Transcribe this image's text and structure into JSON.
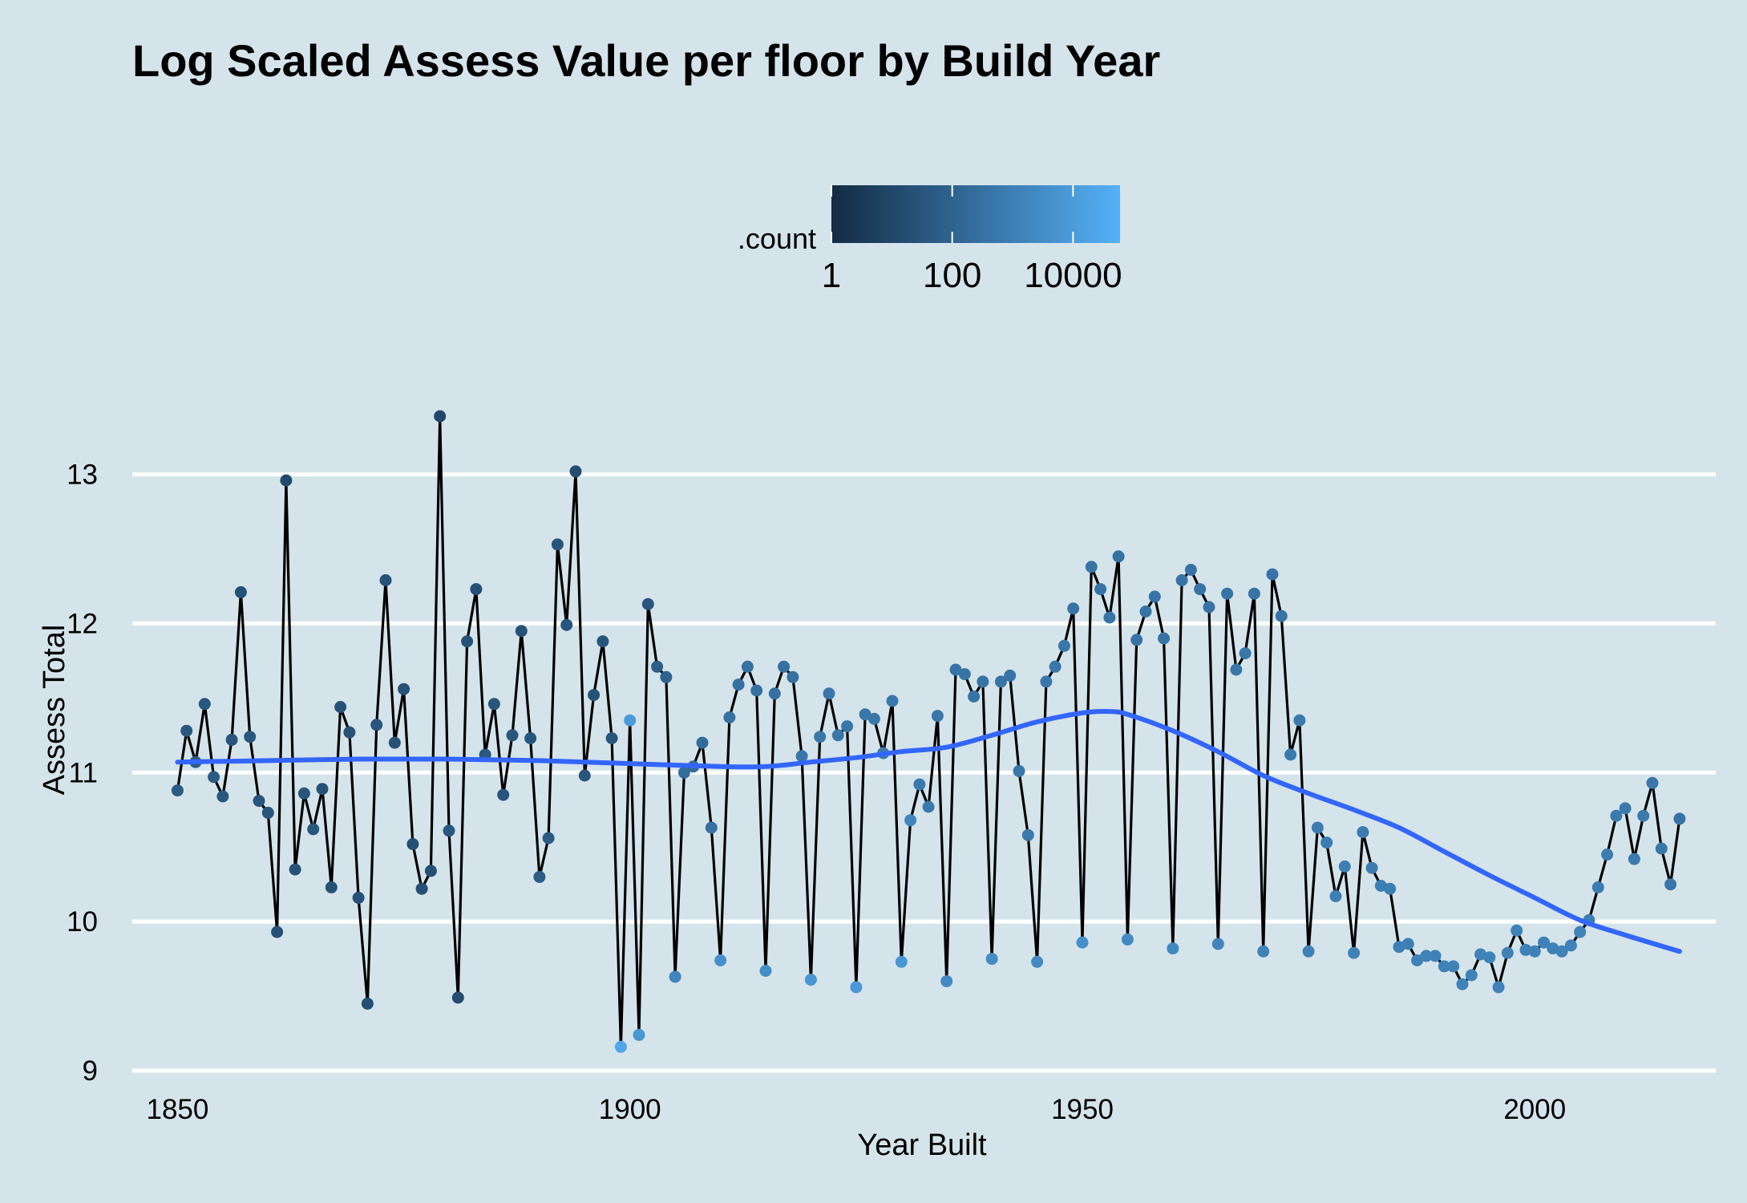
{
  "chart_data": {
    "type": "line",
    "title": "Log Scaled Assess Value per floor by Build Year",
    "xlabel": "Year Built",
    "ylabel": "Assess Total",
    "xlim": [
      1845,
      2020
    ],
    "ylim": [
      9,
      13.6
    ],
    "x_ticks": [
      "1850",
      "1900",
      "1950",
      "2000"
    ],
    "y_ticks": [
      "9",
      "10",
      "11",
      "12",
      "13"
    ],
    "grid": "horizontal major",
    "legend": {
      "title": ".count",
      "position": "top",
      "scale": "log10",
      "range": [
        1,
        60000
      ],
      "tick_labels": [
        "1",
        "100",
        "10000"
      ],
      "color_low": "#132b43",
      "color_high": "#56b1f7"
    },
    "line_color": "#000000",
    "smooth_color": "#3366ff",
    "points": [
      [
        1850,
        10.88,
        1.7
      ],
      [
        1851,
        11.28,
        1.6
      ],
      [
        1852,
        11.07,
        1.7
      ],
      [
        1853,
        11.46,
        1.6
      ],
      [
        1854,
        10.97,
        1.7
      ],
      [
        1855,
        10.84,
        1.6
      ],
      [
        1856,
        11.22,
        1.5
      ],
      [
        1857,
        12.21,
        1.4
      ],
      [
        1858,
        11.24,
        1.6
      ],
      [
        1859,
        10.81,
        1.5
      ],
      [
        1860,
        10.73,
        1.5
      ],
      [
        1861,
        9.93,
        1.3
      ],
      [
        1862,
        12.96,
        1.1
      ],
      [
        1863,
        10.35,
        1.4
      ],
      [
        1864,
        10.86,
        1.5
      ],
      [
        1865,
        10.62,
        1.6
      ],
      [
        1866,
        10.89,
        1.4
      ],
      [
        1867,
        10.23,
        1.4
      ],
      [
        1868,
        11.44,
        1.4
      ],
      [
        1869,
        11.27,
        1.4
      ],
      [
        1870,
        10.16,
        1.4
      ],
      [
        1871,
        9.45,
        1.3
      ],
      [
        1872,
        11.32,
        1.5
      ],
      [
        1873,
        12.29,
        1.4
      ],
      [
        1874,
        11.2,
        1.4
      ],
      [
        1875,
        11.56,
        1.4
      ],
      [
        1876,
        10.52,
        1.3
      ],
      [
        1877,
        10.22,
        1.3
      ],
      [
        1878,
        10.34,
        1.3
      ],
      [
        1879,
        13.39,
        1.0
      ],
      [
        1880,
        10.61,
        1.6
      ],
      [
        1881,
        9.49,
        1.2
      ],
      [
        1882,
        11.88,
        1.4
      ],
      [
        1883,
        12.23,
        1.3
      ],
      [
        1884,
        11.12,
        1.6
      ],
      [
        1885,
        11.46,
        1.5
      ],
      [
        1886,
        10.85,
        1.5
      ],
      [
        1887,
        11.25,
        1.5
      ],
      [
        1888,
        11.95,
        1.4
      ],
      [
        1889,
        11.23,
        1.5
      ],
      [
        1890,
        10.3,
        1.8
      ],
      [
        1891,
        10.56,
        1.7
      ],
      [
        1892,
        12.53,
        1.5
      ],
      [
        1893,
        11.99,
        1.5
      ],
      [
        1894,
        13.02,
        1.2
      ],
      [
        1895,
        10.98,
        1.5
      ],
      [
        1896,
        11.52,
        1.4
      ],
      [
        1897,
        11.88,
        1.5
      ],
      [
        1898,
        11.23,
        1.5
      ],
      [
        1899,
        9.16,
        4.4
      ],
      [
        1900,
        11.35,
        4.0
      ],
      [
        1901,
        9.24,
        3.8
      ],
      [
        1902,
        12.13,
        1.5
      ],
      [
        1903,
        11.71,
        1.8
      ],
      [
        1904,
        11.64,
        2.0
      ],
      [
        1905,
        9.63,
        3.2
      ],
      [
        1906,
        11.0,
        2.3
      ],
      [
        1907,
        11.04,
        2.3
      ],
      [
        1908,
        11.2,
        2.3
      ],
      [
        1909,
        10.63,
        2.5
      ],
      [
        1910,
        9.74,
        3.6
      ],
      [
        1911,
        11.37,
        2.5
      ],
      [
        1912,
        11.59,
        2.5
      ],
      [
        1913,
        11.71,
        2.5
      ],
      [
        1914,
        11.55,
        2.5
      ],
      [
        1915,
        9.67,
        3.5
      ],
      [
        1916,
        11.53,
        2.5
      ],
      [
        1917,
        11.71,
        2.5
      ],
      [
        1918,
        11.64,
        2.5
      ],
      [
        1919,
        11.11,
        2.7
      ],
      [
        1920,
        9.61,
        3.8
      ],
      [
        1921,
        11.24,
        2.7
      ],
      [
        1922,
        11.53,
        2.7
      ],
      [
        1923,
        11.25,
        2.7
      ],
      [
        1924,
        11.31,
        2.7
      ],
      [
        1925,
        9.56,
        3.9
      ],
      [
        1926,
        11.39,
        2.7
      ],
      [
        1927,
        11.36,
        2.7
      ],
      [
        1928,
        11.13,
        2.8
      ],
      [
        1929,
        11.48,
        2.7
      ],
      [
        1930,
        9.73,
        3.8
      ],
      [
        1931,
        10.68,
        3.2
      ],
      [
        1932,
        10.92,
        2.8
      ],
      [
        1933,
        10.77,
        2.8
      ],
      [
        1934,
        11.38,
        2.7
      ],
      [
        1935,
        9.6,
        3.4
      ],
      [
        1936,
        11.69,
        2.6
      ],
      [
        1937,
        11.66,
        2.6
      ],
      [
        1938,
        11.51,
        2.6
      ],
      [
        1939,
        11.61,
        2.6
      ],
      [
        1940,
        9.75,
        3.5
      ],
      [
        1941,
        11.61,
        2.6
      ],
      [
        1942,
        11.65,
        2.6
      ],
      [
        1943,
        11.01,
        2.7
      ],
      [
        1944,
        10.58,
        2.8
      ],
      [
        1945,
        9.73,
        3.4
      ],
      [
        1946,
        11.61,
        2.7
      ],
      [
        1947,
        11.71,
        2.7
      ],
      [
        1948,
        11.85,
        2.7
      ],
      [
        1949,
        12.1,
        2.6
      ],
      [
        1950,
        9.86,
        3.6
      ],
      [
        1951,
        12.38,
        2.6
      ],
      [
        1952,
        12.23,
        2.6
      ],
      [
        1953,
        12.04,
        2.6
      ],
      [
        1954,
        12.45,
        2.5
      ],
      [
        1955,
        9.88,
        3.4
      ],
      [
        1956,
        11.89,
        2.6
      ],
      [
        1957,
        12.08,
        2.6
      ],
      [
        1958,
        12.18,
        2.6
      ],
      [
        1959,
        11.9,
        2.6
      ],
      [
        1960,
        9.82,
        3.3
      ],
      [
        1961,
        12.29,
        2.6
      ],
      [
        1962,
        12.36,
        2.6
      ],
      [
        1963,
        12.23,
        2.6
      ],
      [
        1964,
        12.11,
        2.6
      ],
      [
        1965,
        9.85,
        3.2
      ],
      [
        1966,
        12.2,
        2.6
      ],
      [
        1967,
        11.69,
        2.7
      ],
      [
        1968,
        11.8,
        2.7
      ],
      [
        1969,
        12.2,
        2.6
      ],
      [
        1970,
        9.8,
        3.1
      ],
      [
        1971,
        12.33,
        2.6
      ],
      [
        1972,
        12.05,
        2.6
      ],
      [
        1973,
        11.12,
        2.8
      ],
      [
        1974,
        11.35,
        2.8
      ],
      [
        1975,
        9.8,
        3.1
      ],
      [
        1976,
        10.63,
        2.9
      ],
      [
        1977,
        10.53,
        2.9
      ],
      [
        1978,
        10.17,
        3.0
      ],
      [
        1979,
        10.37,
        3.0
      ],
      [
        1980,
        9.79,
        3.1
      ],
      [
        1981,
        10.6,
        2.9
      ],
      [
        1982,
        10.36,
        2.9
      ],
      [
        1983,
        10.24,
        3.0
      ],
      [
        1984,
        10.22,
        3.0
      ],
      [
        1985,
        9.83,
        3.0
      ],
      [
        1986,
        9.85,
        3.0
      ],
      [
        1987,
        9.74,
        3.1
      ],
      [
        1988,
        9.77,
        3.1
      ],
      [
        1989,
        9.77,
        3.1
      ],
      [
        1990,
        9.7,
        3.1
      ],
      [
        1991,
        9.7,
        3.1
      ],
      [
        1992,
        9.58,
        3.1
      ],
      [
        1993,
        9.64,
        3.1
      ],
      [
        1994,
        9.78,
        3.1
      ],
      [
        1995,
        9.76,
        3.1
      ],
      [
        1996,
        9.56,
        3.1
      ],
      [
        1997,
        9.79,
        3.1
      ],
      [
        1998,
        9.94,
        3.1
      ],
      [
        1999,
        9.81,
        3.1
      ],
      [
        2000,
        9.8,
        3.1
      ],
      [
        2001,
        9.86,
        3.1
      ],
      [
        2002,
        9.82,
        3.1
      ],
      [
        2003,
        9.8,
        3.1
      ],
      [
        2004,
        9.84,
        3.1
      ],
      [
        2005,
        9.93,
        3.1
      ],
      [
        2006,
        10.01,
        3.0
      ],
      [
        2007,
        10.23,
        2.9
      ],
      [
        2008,
        10.45,
        2.9
      ],
      [
        2009,
        10.71,
        2.8
      ],
      [
        2010,
        10.76,
        2.8
      ],
      [
        2011,
        10.42,
        2.8
      ],
      [
        2012,
        10.71,
        2.8
      ],
      [
        2013,
        10.93,
        2.7
      ],
      [
        2014,
        10.49,
        2.7
      ],
      [
        2015,
        10.25,
        2.7
      ],
      [
        2016,
        10.69,
        2.6
      ]
    ],
    "smooth": [
      [
        1850,
        11.07
      ],
      [
        1860,
        11.08
      ],
      [
        1870,
        11.09
      ],
      [
        1880,
        11.09
      ],
      [
        1890,
        11.08
      ],
      [
        1900,
        11.06
      ],
      [
        1910,
        11.04
      ],
      [
        1915,
        11.04
      ],
      [
        1920,
        11.07
      ],
      [
        1925,
        11.1
      ],
      [
        1930,
        11.14
      ],
      [
        1935,
        11.17
      ],
      [
        1940,
        11.25
      ],
      [
        1945,
        11.34
      ],
      [
        1950,
        11.4
      ],
      [
        1953,
        11.41
      ],
      [
        1955,
        11.39
      ],
      [
        1960,
        11.28
      ],
      [
        1965,
        11.14
      ],
      [
        1970,
        10.98
      ],
      [
        1975,
        10.86
      ],
      [
        1980,
        10.75
      ],
      [
        1985,
        10.63
      ],
      [
        1990,
        10.47
      ],
      [
        1995,
        10.31
      ],
      [
        2000,
        10.16
      ],
      [
        2005,
        10.01
      ],
      [
        2010,
        9.91
      ],
      [
        2016,
        9.8
      ]
    ]
  }
}
